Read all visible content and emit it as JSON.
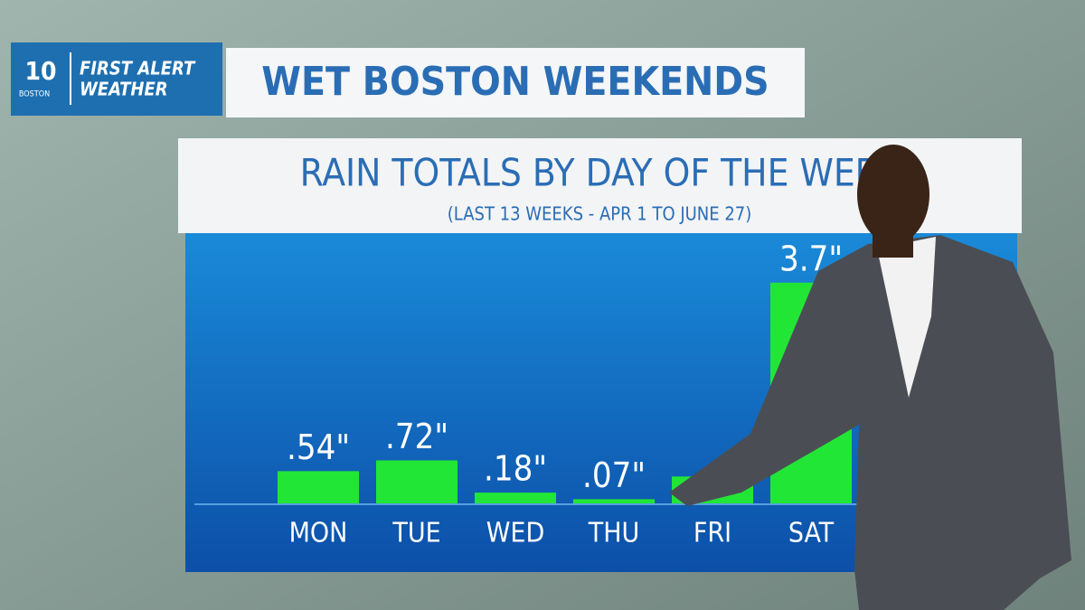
{
  "header": {
    "logo_number": "10",
    "logo_city": "BOSTON",
    "brand": "FIRST ALERT",
    "brand_sub": "WEATHER",
    "headline": "WET BOSTON WEEKENDS"
  },
  "chart_data": {
    "type": "bar",
    "title": "RAIN TOTALS BY DAY OF THE WEEK",
    "subtitle": "(LAST 13 WEEKS - APR 1 TO JUNE 27)",
    "categories": [
      "MON",
      "TUE",
      "WED",
      "THU",
      "FRI",
      "SAT"
    ],
    "values": [
      0.54,
      0.72,
      0.18,
      0.07,
      0.45,
      3.7
    ],
    "value_labels": [
      ".54\"",
      ".72\"",
      ".18\"",
      ".07\"",
      null,
      "3.7\""
    ],
    "color": "#22e636"
  }
}
